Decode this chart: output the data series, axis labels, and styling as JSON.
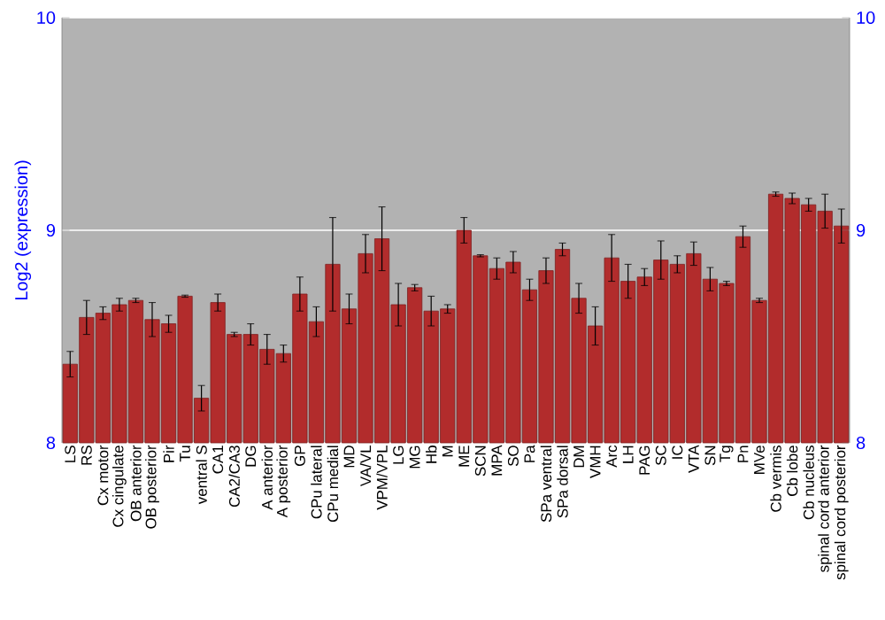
{
  "chart_data": {
    "type": "bar",
    "ylabel": "Log2 (expression)",
    "categories": [
      "LS",
      "RS",
      "Cx motor",
      "Cx cingulate",
      "OB anterior",
      "OB posterior",
      "Pir",
      "Tu",
      "ventral S",
      "CA1",
      "CA2/CA3",
      "DG",
      "A anterior",
      "A posterior",
      "GP",
      "CPu lateral",
      "CPu medial",
      "MD",
      "VA/VL",
      "VPM/VPL",
      "LG",
      "MG",
      "Hb",
      "M",
      "ME",
      "SCN",
      "MPA",
      "SO",
      "Pa",
      "SPa ventral",
      "SPa dorsal",
      "DM",
      "VMH",
      "Arc",
      "LH",
      "PAG",
      "SC",
      "IC",
      "VTA",
      "SN",
      "Tg",
      "Pn",
      "MVe",
      "Cb vermis",
      "Cb lobe",
      "Cb nucleus",
      "spinal cord anterior",
      "spinal cord posterior"
    ],
    "values": [
      8.37,
      8.59,
      8.61,
      8.65,
      8.67,
      8.58,
      8.56,
      8.69,
      8.21,
      8.66,
      8.51,
      8.51,
      8.44,
      8.42,
      8.7,
      8.57,
      8.84,
      8.63,
      8.89,
      8.96,
      8.65,
      8.73,
      8.62,
      8.63,
      9.0,
      8.88,
      8.82,
      8.85,
      8.72,
      8.81,
      8.91,
      8.68,
      8.55,
      8.87,
      8.76,
      8.78,
      8.86,
      8.84,
      8.89,
      8.77,
      8.75,
      8.97,
      8.67,
      9.17,
      9.15,
      9.12,
      9.09,
      9.02
    ],
    "errors": [
      0.06,
      0.08,
      0.03,
      0.03,
      0.01,
      0.08,
      0.04,
      0.005,
      0.06,
      0.04,
      0.01,
      0.05,
      0.07,
      0.04,
      0.08,
      0.07,
      0.22,
      0.07,
      0.09,
      0.15,
      0.1,
      0.015,
      0.07,
      0.02,
      0.06,
      0.005,
      0.05,
      0.05,
      0.05,
      0.06,
      0.03,
      0.07,
      0.09,
      0.11,
      0.08,
      0.04,
      0.09,
      0.04,
      0.055,
      0.055,
      0.01,
      0.05,
      0.01,
      0.01,
      0.025,
      0.03,
      0.08,
      0.08
    ],
    "color": "#b22c2c",
    "ylim": [
      8,
      10
    ],
    "yticks": [
      8,
      9,
      10
    ],
    "y2lim": [
      8,
      10
    ],
    "y2ticks": [
      8,
      9,
      10
    ],
    "grid": "y"
  }
}
